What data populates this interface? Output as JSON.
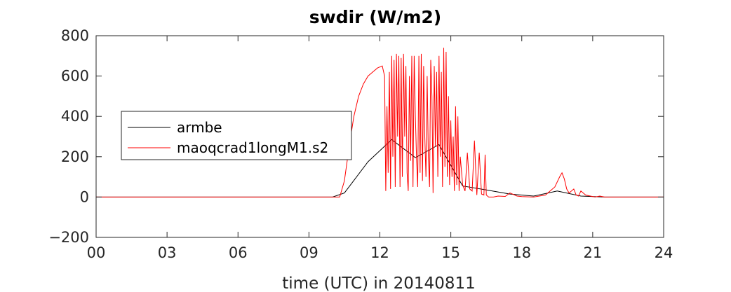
{
  "chart_data": {
    "type": "line",
    "title": "swdir  (W/m2)",
    "xlabel": "time (UTC) in 20140811",
    "ylabel": "",
    "xlim": [
      0,
      24
    ],
    "ylim": [
      -200,
      800
    ],
    "x_ticks": [
      "00",
      "03",
      "06",
      "09",
      "12",
      "15",
      "18",
      "21",
      "24"
    ],
    "y_ticks": [
      "−200",
      "0",
      "200",
      "400",
      "600",
      "800"
    ],
    "y_tick_values": [
      -200,
      0,
      200,
      400,
      600,
      800
    ],
    "grid": false,
    "legend_location": "left",
    "series": [
      {
        "name": "armbe",
        "color": "#000000",
        "x": [
          0,
          1,
          2,
          3,
          4,
          5,
          6,
          7,
          8,
          9,
          10,
          10.5,
          11.5,
          12.5,
          13.5,
          14.5,
          15.5,
          16.5,
          17.5,
          18.5,
          19.5,
          20.5,
          21.5,
          22.5,
          23.5,
          24
        ],
        "y": [
          0,
          0,
          0,
          0,
          0,
          0,
          0,
          0,
          0,
          0,
          0,
          20,
          175,
          285,
          195,
          260,
          55,
          35,
          15,
          5,
          30,
          5,
          0,
          0,
          0,
          0
        ]
      },
      {
        "name": "maoqcrad1longM1.s2",
        "color": "#ff0000",
        "x": [
          0,
          9.5,
          10.3,
          10.5,
          10.7,
          10.9,
          11.1,
          11.3,
          11.5,
          11.7,
          11.9,
          12.1,
          12.2,
          12.25,
          12.3,
          12.35,
          12.4,
          12.45,
          12.5,
          12.55,
          12.6,
          12.65,
          12.7,
          12.75,
          12.8,
          12.85,
          12.9,
          12.95,
          13.0,
          13.05,
          13.1,
          13.15,
          13.2,
          13.25,
          13.3,
          13.35,
          13.4,
          13.45,
          13.5,
          13.55,
          13.6,
          13.65,
          13.7,
          13.75,
          13.8,
          13.85,
          13.9,
          13.95,
          14.0,
          14.05,
          14.1,
          14.15,
          14.2,
          14.25,
          14.3,
          14.35,
          14.4,
          14.45,
          14.5,
          14.55,
          14.6,
          14.65,
          14.7,
          14.75,
          14.8,
          14.85,
          14.9,
          14.95,
          15.0,
          15.05,
          15.1,
          15.15,
          15.2,
          15.25,
          15.3,
          15.35,
          15.4,
          15.5,
          15.6,
          15.7,
          15.8,
          15.9,
          16.0,
          16.1,
          16.2,
          16.3,
          16.4,
          16.45,
          16.5,
          16.55,
          16.6,
          16.8,
          17.0,
          17.3,
          17.5,
          17.8,
          18.0,
          18.5,
          19.0,
          19.4,
          19.6,
          19.7,
          19.8,
          19.9,
          20.0,
          20.2,
          20.3,
          20.4,
          20.5,
          20.7,
          20.9,
          21.1,
          21.3,
          21.5,
          22,
          23,
          24
        ],
        "y": [
          0,
          0,
          0,
          80,
          250,
          400,
          500,
          560,
          600,
          620,
          640,
          650,
          600,
          30,
          450,
          120,
          620,
          40,
          700,
          200,
          680,
          50,
          710,
          300,
          700,
          50,
          690,
          100,
          710,
          300,
          650,
          120,
          30,
          600,
          180,
          700,
          50,
          700,
          400,
          200,
          50,
          700,
          120,
          710,
          80,
          650,
          300,
          100,
          600,
          200,
          50,
          680,
          500,
          20,
          650,
          250,
          620,
          100,
          700,
          200,
          620,
          50,
          740,
          150,
          720,
          100,
          500,
          60,
          380,
          100,
          300,
          30,
          450,
          60,
          400,
          30,
          200,
          60,
          30,
          220,
          40,
          30,
          280,
          10,
          220,
          15,
          10,
          210,
          10,
          5,
          0,
          0,
          5,
          3,
          20,
          5,
          2,
          0,
          10,
          50,
          100,
          120,
          90,
          40,
          20,
          40,
          10,
          5,
          30,
          10,
          5,
          0,
          5,
          0,
          0,
          0,
          0
        ]
      }
    ]
  }
}
